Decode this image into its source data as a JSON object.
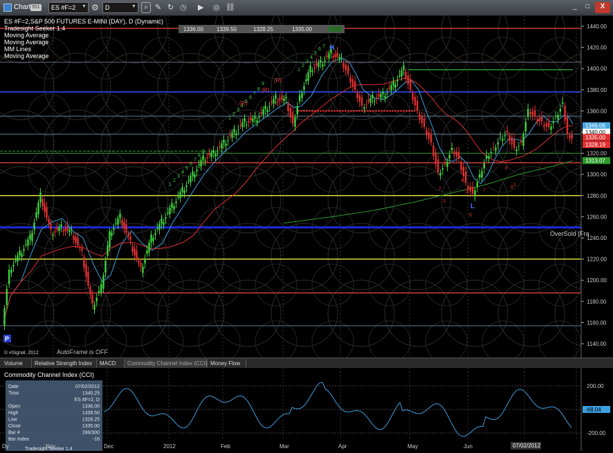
{
  "titlebar": {
    "window_title": "Chart",
    "window_badge": "551",
    "symbol": "ES #F=2",
    "interval": "D",
    "min_btn": "_",
    "max_btn": "□",
    "close_btn": "X"
  },
  "chart": {
    "title": "ES #F=2,S&P 500 FUTURES E-MINI (DAY), D (Dynamic)",
    "studies": [
      "Tradesight Seeker 1.4",
      "Moving Average",
      "Moving Average",
      "MM Lines",
      "Moving Average"
    ],
    "ohlc_strip": [
      "1336.00",
      "1339.50",
      "1328.25",
      "1335.00"
    ],
    "copyright": "© eSignal, 2012",
    "autoframe": "AutoFrame is OFF",
    "oversold": "OverSold (Fra",
    "marker_h": "H",
    "marker_l": "L",
    "marker_p": "P",
    "r_labels": [
      "(R)",
      "(R)",
      "(R)"
    ],
    "price_ticks": [
      "1440.00",
      "1420.00",
      "1400.00",
      "1380.00",
      "1360.00",
      "1340.00",
      "1320.00",
      "1300.00",
      "1280.00",
      "1260.00",
      "1240.00",
      "1220.00",
      "1200.00",
      "1180.00",
      "1160.00",
      "1140.00"
    ],
    "price_flags": [
      {
        "label": "1346.06",
        "color": "#4aa8e0"
      },
      {
        "label": "1340.00",
        "color": "#ffffff"
      },
      {
        "label": "1335.00",
        "color": "#e03030"
      },
      {
        "label": "1328.19",
        "color": "#e03030"
      },
      {
        "label": "1313.07",
        "color": "#2c9a2c"
      }
    ],
    "green_counts": [
      "1",
      "2",
      "3",
      "4",
      "5",
      "6",
      "7",
      "8",
      "9"
    ],
    "red_counts": [
      "1",
      "2",
      "3",
      "4",
      "5",
      "6",
      "7",
      "8",
      "9"
    ]
  },
  "tabs": [
    "Volume",
    "Relative Strength Index",
    "MACD",
    "Commodity Channel Index (CCI)",
    "Money Flow"
  ],
  "active_tab": 3,
  "cci": {
    "title": "Commodity Channel Index (CCI)",
    "ticks": [
      "200.00",
      "0.00",
      "-200.00"
    ],
    "current": "-68.04"
  },
  "data_window": {
    "rows": [
      {
        "k": "Date",
        "v": "07/02/2012"
      },
      {
        "k": "Time",
        "v": "1340.25"
      },
      {
        "k": "",
        "v": "ES #F=2, D"
      },
      {
        "k": "Open",
        "v": "1336.00"
      },
      {
        "k": "High",
        "v": "1339.50"
      },
      {
        "k": "Low",
        "v": "1328.25"
      },
      {
        "k": "Close",
        "v": "1335.00"
      },
      {
        "k": "Bar #",
        "v": "286/300"
      },
      {
        "k": "Bar Index",
        "v": "-16"
      }
    ],
    "footer": "Tradesight Seeker 1.4"
  },
  "x_axis": {
    "labels": [
      "Dy",
      "Nov",
      "Dec",
      "2012",
      "Feb",
      "Mar",
      "Apr",
      "May",
      "Jun"
    ],
    "date_flag": "07/02/2012"
  }
}
